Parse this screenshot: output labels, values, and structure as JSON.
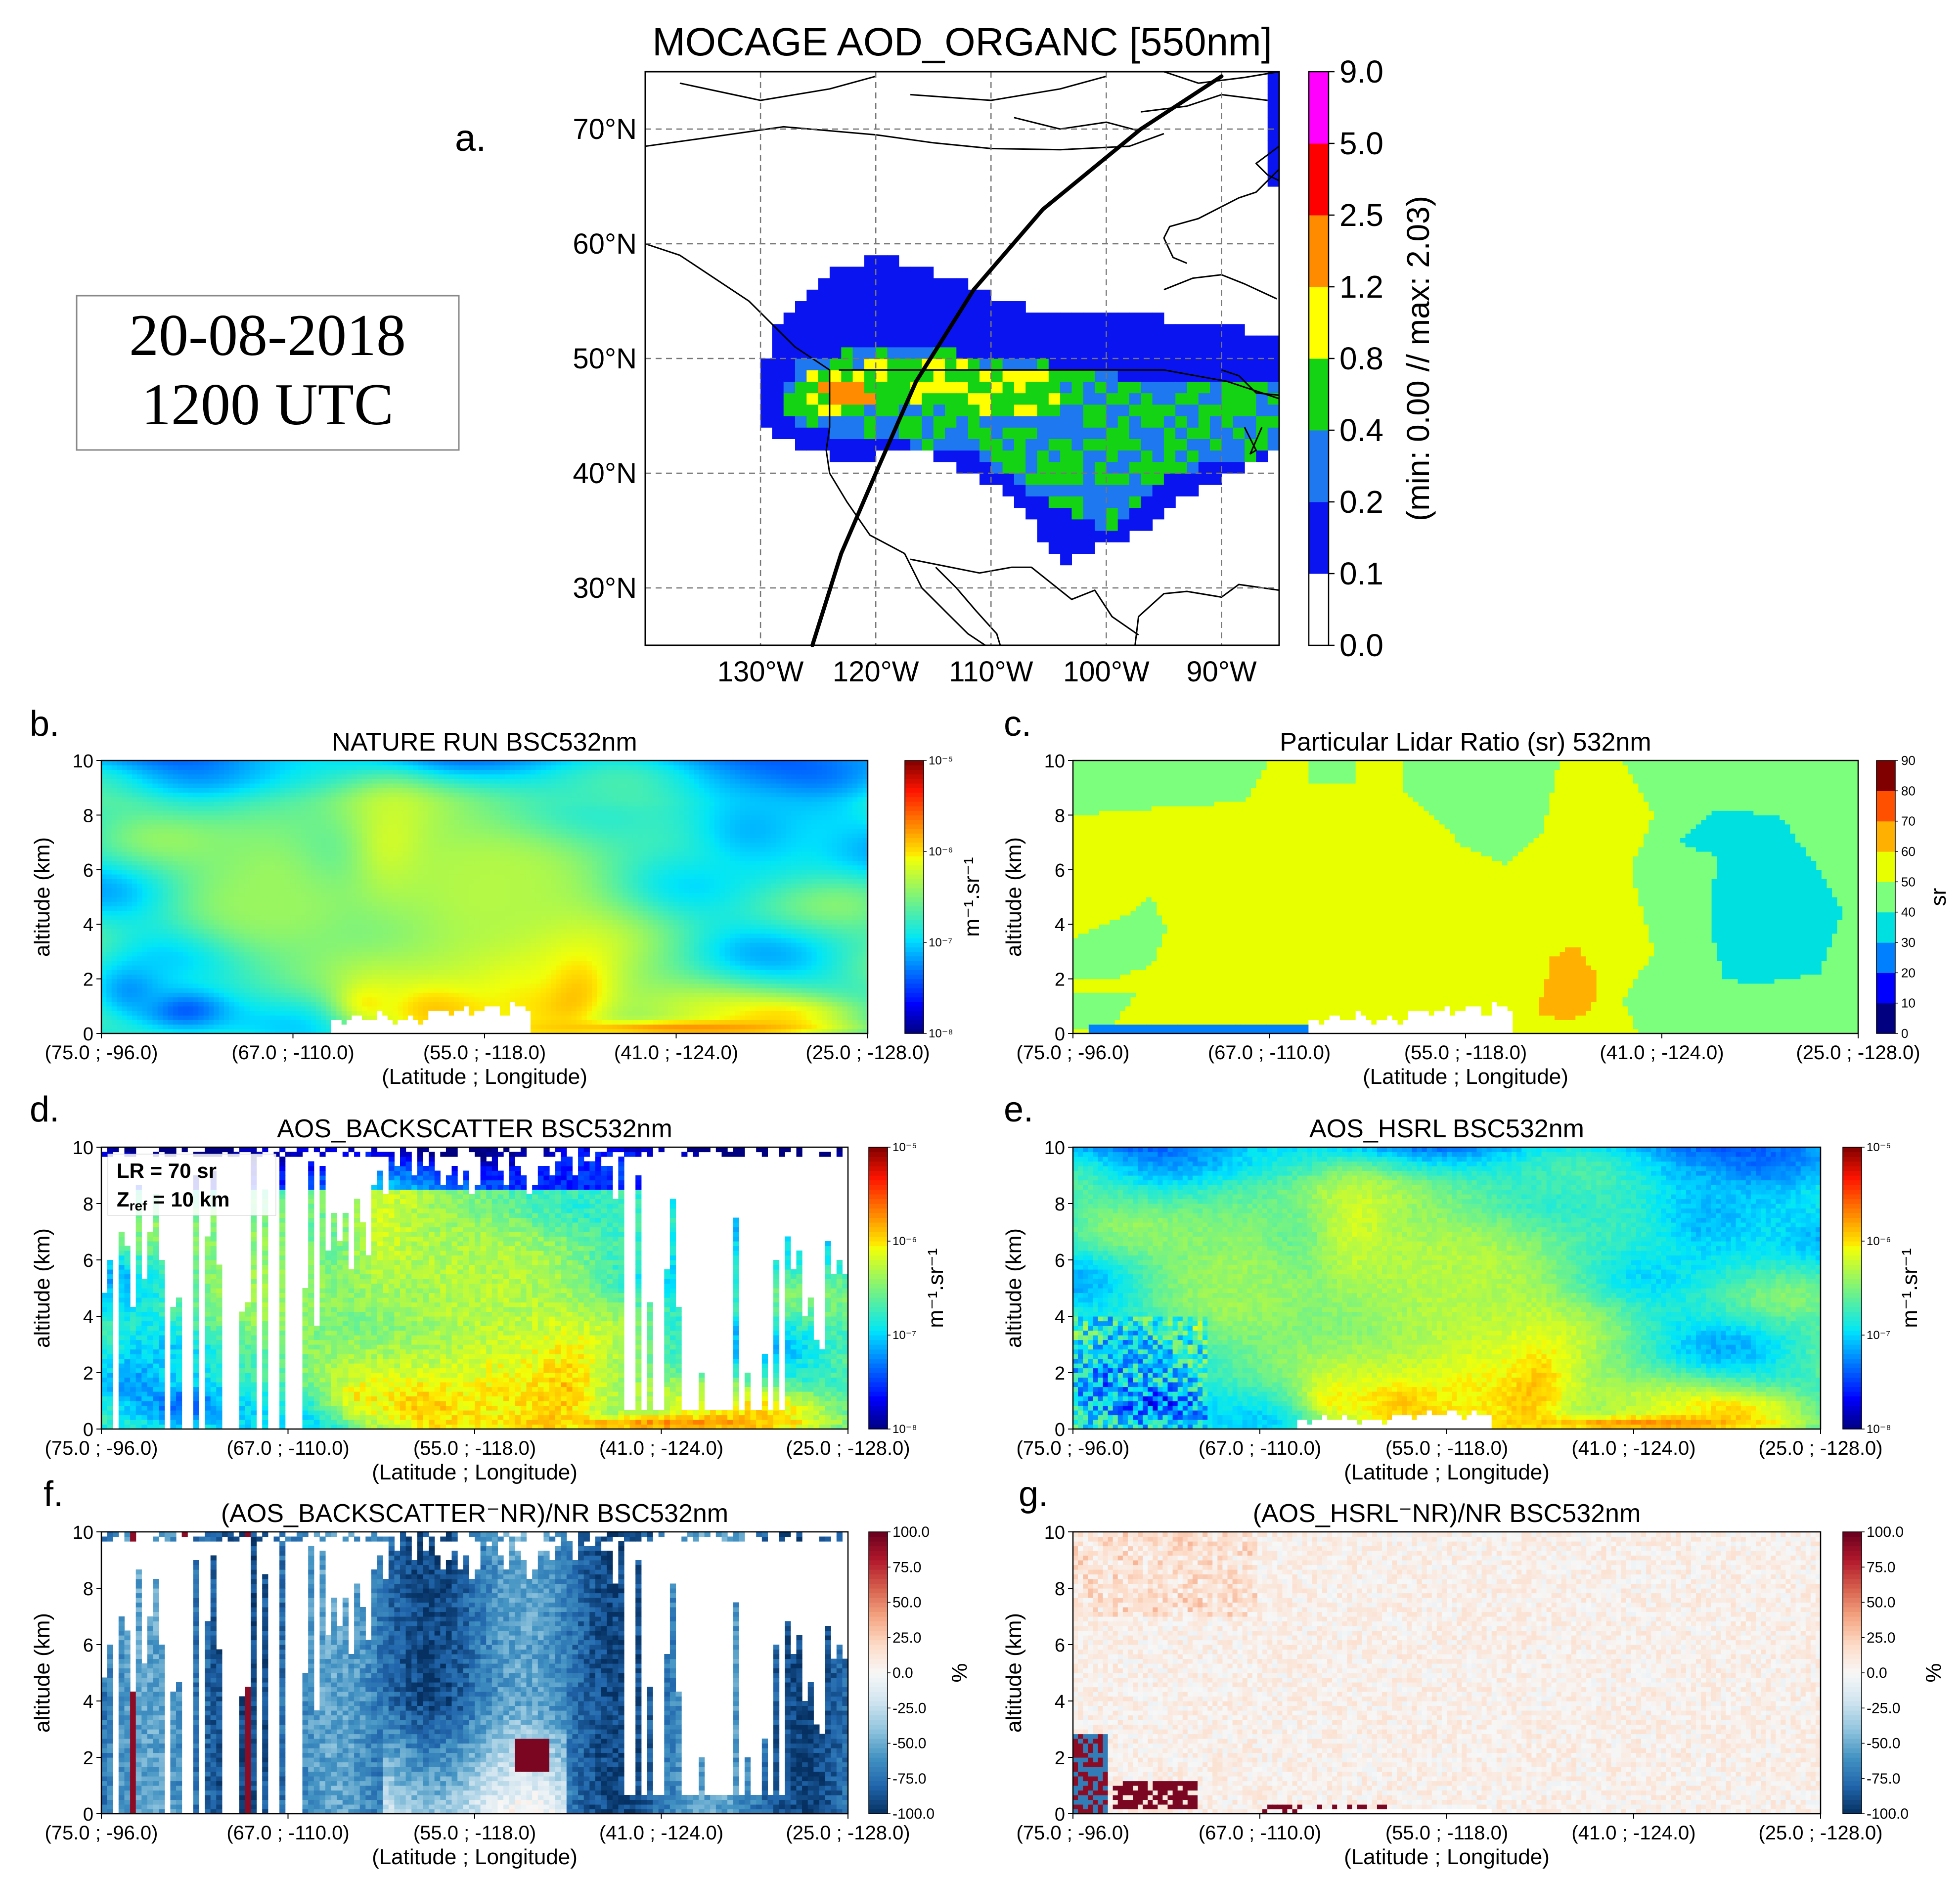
{
  "date_box": {
    "date": "20-08-2018",
    "time": "1200 UTC"
  },
  "chart_data": [
    {
      "id": "a",
      "panel_letter": "a.",
      "type": "heatmap",
      "title": "MOCAGE AOD_ORGANC [550nm]",
      "xticks": [
        "130°W",
        "120°W",
        "110°W",
        "100°W",
        "90°W"
      ],
      "xtick_values": [
        -130,
        -120,
        -110,
        -100,
        -90
      ],
      "yticks": [
        "30°N",
        "40°N",
        "50°N",
        "60°N",
        "70°N"
      ],
      "ytick_values": [
        30,
        40,
        50,
        60,
        70
      ],
      "xlim": [
        -140,
        -85
      ],
      "ylim": [
        25,
        75
      ],
      "colorbar": {
        "label": "(min:  0.00 // max:  2.03)",
        "levels": [
          "0.0",
          "0.1",
          "0.2",
          "0.4",
          "0.8",
          "1.2",
          "2.5",
          "5.0",
          "9.0"
        ],
        "colors": [
          "#ffffff",
          "#0a14f0",
          "#1e78f0",
          "#14d214",
          "#ffff00",
          "#ff8c00",
          "#ff0000",
          "#ff00ff"
        ]
      },
      "field_min": 0.0,
      "field_max": 2.03,
      "track_points": [
        [
          -125.5,
          25
        ],
        [
          -123,
          33
        ],
        [
          -120,
          40
        ],
        [
          -116.5,
          48
        ],
        [
          -111.5,
          56
        ],
        [
          -105.5,
          63
        ],
        [
          -97,
          70
        ],
        [
          -90,
          74.6
        ]
      ],
      "plume": {
        "outer_region": [
          [
            -129,
            52
          ],
          [
            -125,
            57
          ],
          [
            -120,
            59
          ],
          [
            -113,
            57
          ],
          [
            -106,
            54
          ],
          [
            -98,
            54
          ],
          [
            -91,
            53
          ],
          [
            -85,
            52
          ],
          [
            -85,
            42
          ],
          [
            -93,
            38
          ],
          [
            -97,
            35
          ],
          [
            -104,
            32
          ],
          [
            -108,
            38
          ],
          [
            -116,
            42
          ],
          [
            -123,
            41
          ],
          [
            -130,
            44
          ],
          [
            -130,
            48
          ]
        ],
        "medium_region": [
          [
            -127,
            50
          ],
          [
            -118,
            51
          ],
          [
            -108,
            50
          ],
          [
            -96,
            48
          ],
          [
            -85,
            48
          ],
          [
            -85,
            42
          ],
          [
            -94,
            40
          ],
          [
            -100,
            35
          ],
          [
            -106,
            38
          ],
          [
            -112,
            42
          ],
          [
            -122,
            43
          ],
          [
            -128,
            45
          ]
        ],
        "high_region": [
          [
            -126,
            49
          ],
          [
            -115,
            50
          ],
          [
            -106,
            49
          ],
          [
            -102,
            46
          ],
          [
            -108,
            45
          ],
          [
            -118,
            46
          ],
          [
            -126,
            45
          ]
        ],
        "peak_region": [
          [
            -125,
            48.5
          ],
          [
            -121,
            48
          ],
          [
            -120,
            46
          ],
          [
            -124,
            46
          ]
        ]
      }
    },
    {
      "id": "b",
      "panel_letter": "b.",
      "type": "heatmap",
      "title": "NATURE RUN BSC532nm",
      "xlabel": "(Latitude ; Longitude)",
      "ylabel": "altitude (km)",
      "xticks": [
        "(75.0 ; -96.0)",
        "(67.0 ; -110.0)",
        "(55.0 ; -118.0)",
        "(41.0 ; -124.0)",
        "(25.0 ; -128.0)"
      ],
      "yticks": [
        "0",
        "2",
        "4",
        "6",
        "8",
        "10"
      ],
      "ylim": [
        0,
        10
      ],
      "colorbar": {
        "label": "m⁻¹.sr⁻¹",
        "scale": "log",
        "ticks": [
          "10⁻⁸",
          "10⁻⁷",
          "10⁻⁶",
          "10⁻⁵"
        ],
        "range": [
          1e-08,
          1e-05
        ]
      },
      "features": [
        {
          "kind": "base",
          "value": 1.6e-07
        },
        {
          "kind": "blob",
          "x": 0.6,
          "y": 1.8,
          "sx": 0.04,
          "sy": 1.1,
          "value": 9e-06
        },
        {
          "kind": "blob",
          "x": 0.55,
          "y": 2.0,
          "sx": 0.09,
          "sy": 1.8,
          "value": 1.5e-06
        },
        {
          "kind": "blob",
          "x": 0.11,
          "y": 0.9,
          "sx": 0.05,
          "sy": 0.6,
          "value": 3e-08
        },
        {
          "kind": "blob",
          "x": 0.04,
          "y": 1.6,
          "sx": 0.04,
          "sy": 0.8,
          "value": 6e-08
        },
        {
          "kind": "blob",
          "x": 0.38,
          "y": 6.8,
          "sx": 0.04,
          "sy": 1.5,
          "value": 1e-06
        },
        {
          "kind": "blob",
          "x": 0.44,
          "y": 1.0,
          "sx": 0.06,
          "sy": 0.8,
          "value": 2e-06
        },
        {
          "kind": "blob",
          "x": 0.35,
          "y": 1.2,
          "sx": 0.03,
          "sy": 0.6,
          "value": 1.2e-06
        },
        {
          "kind": "blob",
          "x": 0.88,
          "y": 0.7,
          "sx": 0.1,
          "sy": 0.6,
          "value": 1e-06
        },
        {
          "kind": "blob",
          "x": 0.75,
          "y": 0.2,
          "sx": 0.15,
          "sy": 0.2,
          "value": 2e-06
        },
        {
          "kind": "blob",
          "x": 0.5,
          "y": 5.0,
          "sx": 0.15,
          "sy": 3.0,
          "value": 5e-07
        },
        {
          "kind": "blob",
          "x": 0.22,
          "y": 5.5,
          "sx": 0.08,
          "sy": 2.5,
          "value": 4e-07
        },
        {
          "kind": "blob",
          "x": 0.85,
          "y": 7.5,
          "sx": 0.08,
          "sy": 1.5,
          "value": 8e-08
        }
      ]
    },
    {
      "id": "c",
      "panel_letter": "c.",
      "type": "heatmap",
      "title": "Particular Lidar Ratio (sr) 532nm",
      "xlabel": "(Latitude ; Longitude)",
      "ylabel": "altitude (km)",
      "xticks": [
        "(75.0 ; -96.0)",
        "(67.0 ; -110.0)",
        "(55.0 ; -118.0)",
        "(41.0 ; -124.0)",
        "(25.0 ; -128.0)"
      ],
      "yticks": [
        "0",
        "2",
        "4",
        "6",
        "8",
        "10"
      ],
      "ylim": [
        0,
        10
      ],
      "colorbar": {
        "label": "sr",
        "ticks": [
          "0",
          "10",
          "20",
          "30",
          "40",
          "50",
          "60",
          "70",
          "80",
          "90"
        ],
        "colors": [
          "#000080",
          "#0000ff",
          "#0080ff",
          "#00e0e0",
          "#7cff7c",
          "#e8ff00",
          "#ffb000",
          "#ff5000",
          "#800000"
        ]
      },
      "regions": [
        {
          "value": 55
        },
        {
          "value": 45,
          "polygon": [
            [
              0,
              10
            ],
            [
              0.25,
              10
            ],
            [
              0.22,
              8.5
            ],
            [
              0.12,
              8.3
            ],
            [
              0.0,
              8.0
            ]
          ]
        },
        {
          "value": 45,
          "polygon": [
            [
              0.3,
              10
            ],
            [
              0.36,
              10
            ],
            [
              0.36,
              9.2
            ],
            [
              0.3,
              9.2
            ]
          ]
        },
        {
          "value": 45,
          "polygon": [
            [
              0.42,
              10
            ],
            [
              0.62,
              10
            ],
            [
              0.6,
              7.5
            ],
            [
              0.55,
              6.2
            ],
            [
              0.5,
              6.8
            ],
            [
              0.45,
              8.2
            ],
            [
              0.42,
              9.0
            ]
          ]
        },
        {
          "value": 45,
          "polygon": [
            [
              0.0,
              3.5
            ],
            [
              0.06,
              4.2
            ],
            [
              0.1,
              5.0
            ],
            [
              0.12,
              3.8
            ],
            [
              0.1,
              2.5
            ],
            [
              0.05,
              2.0
            ],
            [
              0.0,
              2.0
            ]
          ]
        },
        {
          "value": 45,
          "polygon": [
            [
              0.0,
              1.5
            ],
            [
              0.08,
              1.5
            ],
            [
              0.05,
              0.2
            ],
            [
              0.0,
              0.2
            ]
          ]
        },
        {
          "value": 45,
          "polygon": [
            [
              0.7,
              10
            ],
            [
              1.0,
              10
            ],
            [
              1.0,
              0
            ],
            [
              0.72,
              0
            ],
            [
              0.7,
              1.2
            ],
            [
              0.74,
              3.0
            ],
            [
              0.71,
              6.0
            ],
            [
              0.74,
              8.0
            ]
          ]
        },
        {
          "value": 35,
          "polygon": [
            [
              0.77,
              7.0
            ],
            [
              0.82,
              6.5
            ],
            [
              0.81,
              4.0
            ],
            [
              0.83,
              2.0
            ],
            [
              0.87,
              1.8
            ],
            [
              0.95,
              2.2
            ],
            [
              0.98,
              4.5
            ],
            [
              0.95,
              6.0
            ],
            [
              0.9,
              8.0
            ],
            [
              0.82,
              8.2
            ]
          ]
        },
        {
          "value": 35,
          "polygon": [
            [
              0.84,
              4.0
            ],
            [
              0.86,
              3.5
            ],
            [
              0.9,
              3.8
            ],
            [
              0.88,
              4.5
            ]
          ]
        },
        {
          "value": 65,
          "polygon": [
            [
              0.59,
              0.7
            ],
            [
              0.63,
              0.5
            ],
            [
              0.66,
              0.8
            ],
            [
              0.67,
              2.0
            ],
            [
              0.64,
              3.3
            ],
            [
              0.61,
              2.8
            ],
            [
              0.6,
              1.6
            ]
          ]
        },
        {
          "value": 25,
          "polygon": [
            [
              0.02,
              0.05
            ],
            [
              0.3,
              0.05
            ],
            [
              0.3,
              0.3
            ],
            [
              0.02,
              0.3
            ]
          ]
        }
      ]
    },
    {
      "id": "d",
      "panel_letter": "d.",
      "type": "heatmap",
      "title": "AOS_BACKSCATTER BSC532nm",
      "xlabel": "(Latitude ; Longitude)",
      "ylabel": "altitude (km)",
      "xticks": [
        "(75.0 ; -96.0)",
        "(67.0 ; -110.0)",
        "(55.0 ; -118.0)",
        "(41.0 ; -124.0)",
        "(25.0 ; -128.0)"
      ],
      "yticks": [
        "0",
        "2",
        "4",
        "6",
        "8",
        "10"
      ],
      "ylim": [
        0,
        10
      ],
      "colorbar": {
        "label": "m⁻¹.sr⁻¹",
        "scale": "log",
        "ticks": [
          "10⁻⁸",
          "10⁻⁷",
          "10⁻⁶",
          "10⁻⁵"
        ],
        "range": [
          1e-08,
          1e-05
        ]
      },
      "annotation": {
        "lr": "LR = 70 sr",
        "zref_prefix": "Z",
        "zref_sub": "ref",
        "zref_suffix": " = 10 km"
      },
      "mask": "columns_gappy",
      "source": "b"
    },
    {
      "id": "e",
      "panel_letter": "e.",
      "type": "heatmap",
      "title": "AOS_HSRL BSC532nm",
      "xlabel": "(Latitude ; Longitude)",
      "ylabel": "altitude (km)",
      "xticks": [
        "(75.0 ; -96.0)",
        "(67.0 ; -110.0)",
        "(55.0 ; -118.0)",
        "(41.0 ; -124.0)",
        "(25.0 ; -128.0)"
      ],
      "yticks": [
        "0",
        "2",
        "4",
        "6",
        "8",
        "10"
      ],
      "ylim": [
        0,
        10
      ],
      "colorbar": {
        "label": "m⁻¹.sr⁻¹",
        "scale": "log",
        "ticks": [
          "10⁻⁸",
          "10⁻⁷",
          "10⁻⁶",
          "10⁻⁵"
        ],
        "range": [
          1e-08,
          1e-05
        ]
      },
      "mask": "noisy",
      "source": "b"
    },
    {
      "id": "f",
      "panel_letter": "f.",
      "type": "heatmap",
      "title": "(AOS_BACKSCATTER⁻NR)/NR BSC532nm",
      "xlabel": "(Latitude ; Longitude)",
      "ylabel": "altitude (km)",
      "xticks": [
        "(75.0 ; -96.0)",
        "(67.0 ; -110.0)",
        "(55.0 ; -118.0)",
        "(41.0 ; -124.0)",
        "(25.0 ; -128.0)"
      ],
      "yticks": [
        "0",
        "2",
        "4",
        "6",
        "8",
        "10"
      ],
      "ylim": [
        0,
        10
      ],
      "colorbar": {
        "label": "%",
        "ticks": [
          "-100.0",
          "-75.0",
          "-50.0",
          "-25.0",
          "0.0",
          "25.0",
          "50.0",
          "75.0",
          "100.0"
        ],
        "range": [
          -100,
          100
        ]
      },
      "typical_value": -60,
      "mask": "columns_gappy"
    },
    {
      "id": "g",
      "panel_letter": "g.",
      "type": "heatmap",
      "title": "(AOS_HSRL⁻NR)/NR BSC532nm",
      "xlabel": "(Latitude ; Longitude)",
      "ylabel": "altitude (km)",
      "xticks": [
        "(75.0 ; -96.0)",
        "(67.0 ; -110.0)",
        "(55.0 ; -118.0)",
        "(41.0 ; -124.0)",
        "(25.0 ; -128.0)"
      ],
      "yticks": [
        "0",
        "2",
        "4",
        "6",
        "8",
        "10"
      ],
      "ylim": [
        0,
        10
      ],
      "colorbar": {
        "label": "%",
        "ticks": [
          "-100.0",
          "-75.0",
          "-50.0",
          "-25.0",
          "0.0",
          "25.0",
          "50.0",
          "75.0",
          "100.0"
        ],
        "range": [
          -100,
          100
        ]
      },
      "typical_value": 5,
      "mask": "noisy"
    }
  ]
}
